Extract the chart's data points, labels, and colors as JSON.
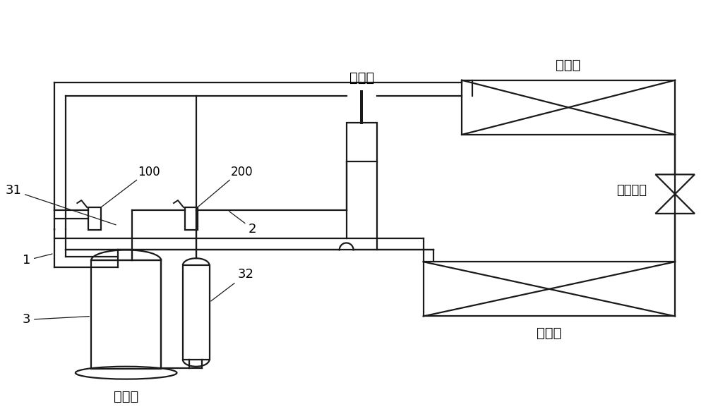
{
  "bg_color": "#ffffff",
  "lc": "#1a1a1a",
  "lw": 1.6,
  "fs": 13,
  "labels": {
    "condenser": "冷凝器",
    "evaporator": "蹒发器",
    "throttle": "节流装置",
    "four_way": "四通阀",
    "compressor": "压缩机",
    "n1": "1",
    "n2": "2",
    "n3": "3",
    "n31": "31",
    "n32": "32",
    "n100": "100",
    "n200": "200"
  }
}
